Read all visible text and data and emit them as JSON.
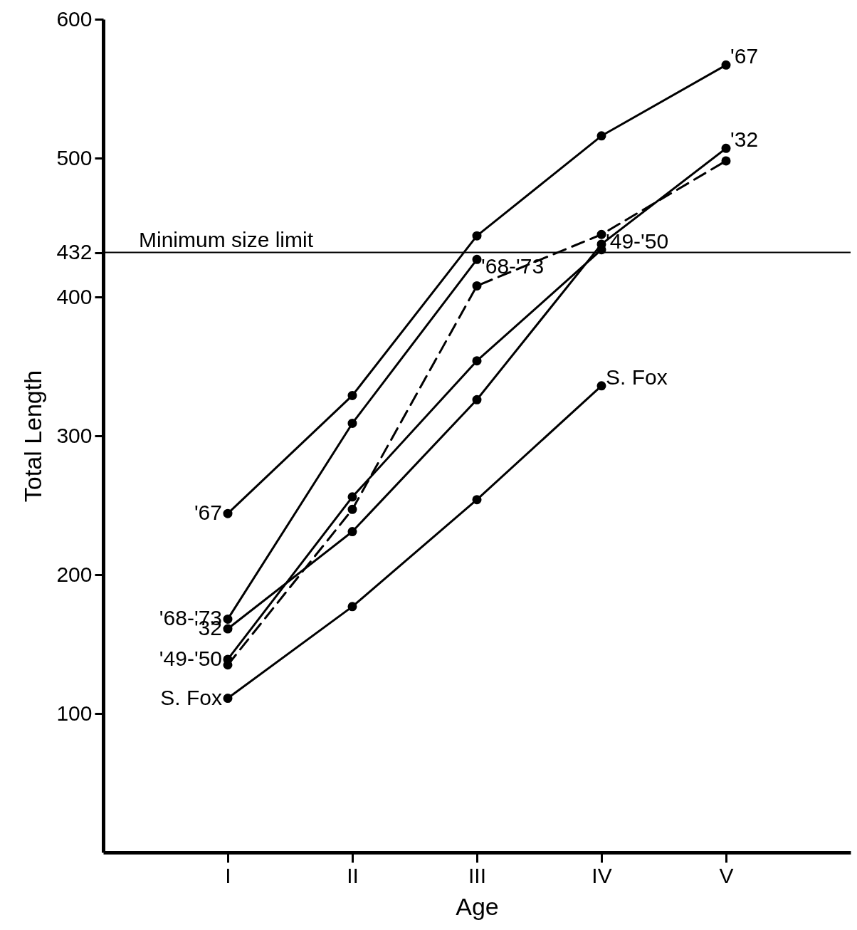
{
  "chart_data": {
    "type": "line",
    "xlabel": "Age",
    "ylabel": "Total Length",
    "categories": [
      "I",
      "II",
      "III",
      "IV",
      "V"
    ],
    "ylim": [
      0,
      600
    ],
    "yticks": [
      100,
      200,
      300,
      400,
      432,
      500,
      600
    ],
    "grid": false,
    "marker": "circle",
    "line_style": "solid",
    "series": [
      {
        "name": "'67",
        "color": "#000000",
        "values": [
          244,
          329,
          444,
          516,
          567
        ]
      },
      {
        "name": "'68-'73",
        "color": "#000000",
        "values": [
          168,
          309,
          427,
          null,
          null
        ]
      },
      {
        "name": "'32",
        "color": "#000000",
        "values": [
          161,
          231,
          326,
          438,
          507
        ]
      },
      {
        "name": "'49-'50",
        "color": "#000000",
        "values": [
          139,
          256,
          354,
          434,
          null
        ]
      },
      {
        "name": "S. Fox",
        "color": "#000000",
        "values": [
          111,
          177,
          254,
          336,
          null
        ]
      },
      {
        "color": "#000000",
        "line_style": "dashed",
        "values": [
          135,
          247,
          408,
          445,
          498
        ]
      }
    ],
    "ref_lines": [
      {
        "axis": "y",
        "value": 432,
        "label": "Minimum size limit",
        "color": "#000000"
      }
    ]
  }
}
